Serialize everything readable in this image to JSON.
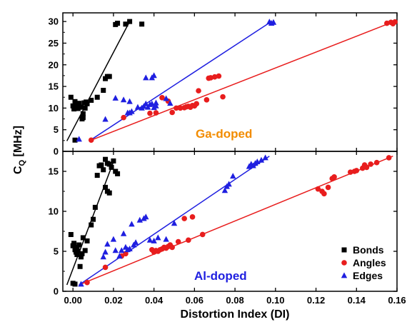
{
  "chart_data": [
    {
      "type": "scatter",
      "panel": "top",
      "annotation": "Ga-doped",
      "annotation_color": "#f28c00",
      "xlim": [
        -0.005,
        0.16
      ],
      "ylim": [
        0,
        32
      ],
      "ytick_values": [
        0,
        5,
        10,
        15,
        20,
        25,
        30
      ],
      "ytick_labels": [
        "0",
        "5",
        "10",
        "15",
        "20",
        "25",
        "30"
      ],
      "series": [
        {
          "name": "Bonds",
          "marker": "square",
          "color": "#000000",
          "points": [
            [
              -0.001,
              12.5
            ],
            [
              0.0,
              10.5
            ],
            [
              0.0005,
              9.8
            ],
            [
              0.001,
              11.5
            ],
            [
              0.001,
              2.6
            ],
            [
              0.0015,
              10.1
            ],
            [
              0.002,
              10.8
            ],
            [
              0.0025,
              9.9
            ],
            [
              0.003,
              11.1
            ],
            [
              0.004,
              10.2
            ],
            [
              0.0045,
              7.5
            ],
            [
              0.005,
              7.8
            ],
            [
              0.005,
              8.7
            ],
            [
              0.0055,
              11.2
            ],
            [
              0.006,
              10.0
            ],
            [
              0.0065,
              11.4
            ],
            [
              0.007,
              11.0
            ],
            [
              0.009,
              11.8
            ],
            [
              0.012,
              12.5
            ],
            [
              0.015,
              14.1
            ],
            [
              0.016,
              16.8
            ],
            [
              0.017,
              17.3
            ],
            [
              0.018,
              17.3
            ],
            [
              0.021,
              29.3
            ],
            [
              0.022,
              29.6
            ],
            [
              0.026,
              29.4
            ],
            [
              0.028,
              30.0
            ],
            [
              0.034,
              29.4
            ]
          ]
        },
        {
          "name": "Angles",
          "marker": "circle",
          "color": "#e81d1d",
          "points": [
            [
              0.009,
              2.6
            ],
            [
              0.025,
              7.8
            ],
            [
              0.038,
              8.8
            ],
            [
              0.041,
              8.9
            ],
            [
              0.044,
              12.4
            ],
            [
              0.047,
              11.6
            ],
            [
              0.049,
              9.0
            ],
            [
              0.051,
              10.0
            ],
            [
              0.053,
              10.0
            ],
            [
              0.055,
              10.1
            ],
            [
              0.056,
              10.3
            ],
            [
              0.057,
              10.4
            ],
            [
              0.058,
              10.2
            ],
            [
              0.059,
              10.6
            ],
            [
              0.06,
              10.5
            ],
            [
              0.061,
              11.0
            ],
            [
              0.062,
              14.0
            ],
            [
              0.066,
              11.9
            ],
            [
              0.067,
              16.9
            ],
            [
              0.068,
              17.0
            ],
            [
              0.07,
              17.2
            ],
            [
              0.072,
              17.4
            ],
            [
              0.074,
              12.6
            ],
            [
              0.155,
              29.6
            ],
            [
              0.157,
              29.8
            ],
            [
              0.158,
              29.5
            ],
            [
              0.159,
              29.9
            ]
          ]
        },
        {
          "name": "Edges",
          "marker": "triangle",
          "color": "#1f1fe0",
          "points": [
            [
              0.003,
              2.8
            ],
            [
              0.016,
              7.4
            ],
            [
              0.021,
              12.3
            ],
            [
              0.025,
              11.9
            ],
            [
              0.027,
              8.9
            ],
            [
              0.028,
              11.5
            ],
            [
              0.028,
              8.9
            ],
            [
              0.029,
              9.2
            ],
            [
              0.032,
              10.2
            ],
            [
              0.034,
              10.0
            ],
            [
              0.035,
              10.4
            ],
            [
              0.036,
              17.0
            ],
            [
              0.036,
              11.0
            ],
            [
              0.037,
              10.2
            ],
            [
              0.038,
              10.8
            ],
            [
              0.039,
              11.0
            ],
            [
              0.039,
              17.0
            ],
            [
              0.04,
              17.5
            ],
            [
              0.04,
              10.1
            ],
            [
              0.041,
              10.5
            ],
            [
              0.041,
              11.2
            ],
            [
              0.046,
              12.2
            ],
            [
              0.048,
              11.1
            ],
            [
              0.097,
              29.9
            ],
            [
              0.098,
              29.6
            ],
            [
              0.099,
              29.8
            ]
          ]
        }
      ],
      "fit_lines": [
        {
          "color": "#000000",
          "x": [
            -0.003,
            0.028
          ],
          "y": [
            2.4,
            30.0
          ]
        },
        {
          "color": "#1f1fe0",
          "x": [
            0.008,
            0.098
          ],
          "y": [
            2.4,
            30.0
          ]
        },
        {
          "color": "#e81d1d",
          "x": [
            0.008,
            0.158
          ],
          "y": [
            2.4,
            29.9
          ]
        }
      ]
    },
    {
      "type": "scatter",
      "panel": "bottom",
      "annotation": "Al-doped",
      "annotation_color": "#1f1fe0",
      "xlim": [
        -0.005,
        0.16
      ],
      "ylim": [
        0,
        17.5
      ],
      "ytick_values": [
        0,
        5,
        10,
        15
      ],
      "ytick_labels": [
        "0",
        "5",
        "10",
        "15"
      ],
      "series": [
        {
          "name": "Bonds",
          "marker": "square",
          "color": "#000000",
          "points": [
            [
              -0.001,
              7.1
            ],
            [
              0.0,
              5.7
            ],
            [
              0.0005,
              6.0
            ],
            [
              0.001,
              5.2
            ],
            [
              0.0015,
              4.9
            ],
            [
              0.002,
              5.5
            ],
            [
              0.002,
              4.6
            ],
            [
              0.0025,
              5.0
            ],
            [
              0.003,
              5.8
            ],
            [
              0.0035,
              3.1
            ],
            [
              0.004,
              4.3
            ],
            [
              0.0045,
              4.7
            ],
            [
              0.005,
              6.7
            ],
            [
              0.006,
              5.1
            ],
            [
              0.007,
              6.3
            ],
            [
              0.009,
              8.3
            ],
            [
              0.01,
              9.0
            ],
            [
              0.011,
              10.5
            ],
            [
              0.012,
              14.5
            ],
            [
              0.013,
              15.7
            ],
            [
              0.014,
              15.8
            ],
            [
              0.015,
              15.2
            ],
            [
              0.016,
              16.5
            ],
            [
              0.016,
              13.0
            ],
            [
              0.017,
              16.0
            ],
            [
              0.017,
              12.5
            ],
            [
              0.018,
              15.9
            ],
            [
              0.018,
              12.3
            ],
            [
              0.019,
              15.5
            ],
            [
              0.02,
              16.3
            ],
            [
              0.021,
              15.0
            ],
            [
              0.022,
              14.7
            ],
            [
              0.0,
              1.0
            ],
            [
              0.001,
              0.9
            ]
          ]
        },
        {
          "name": "Angles",
          "marker": "circle",
          "color": "#e81d1d",
          "points": [
            [
              0.007,
              1.1
            ],
            [
              0.016,
              3.0
            ],
            [
              0.024,
              4.4
            ],
            [
              0.026,
              4.7
            ],
            [
              0.039,
              5.2
            ],
            [
              0.04,
              4.9
            ],
            [
              0.041,
              5.1
            ],
            [
              0.042,
              5.0
            ],
            [
              0.043,
              5.2
            ],
            [
              0.044,
              5.3
            ],
            [
              0.045,
              5.5
            ],
            [
              0.046,
              5.4
            ],
            [
              0.047,
              5.6
            ],
            [
              0.048,
              5.8
            ],
            [
              0.049,
              5.5
            ],
            [
              0.052,
              6.2
            ],
            [
              0.055,
              9.1
            ],
            [
              0.057,
              6.4
            ],
            [
              0.059,
              9.3
            ],
            [
              0.064,
              7.1
            ],
            [
              0.121,
              12.8
            ],
            [
              0.123,
              12.5
            ],
            [
              0.124,
              12.2
            ],
            [
              0.126,
              13.0
            ],
            [
              0.128,
              14.1
            ],
            [
              0.129,
              14.3
            ],
            [
              0.137,
              14.9
            ],
            [
              0.139,
              15.0
            ],
            [
              0.14,
              15.1
            ],
            [
              0.143,
              15.4
            ],
            [
              0.144,
              15.8
            ],
            [
              0.145,
              15.5
            ],
            [
              0.147,
              15.9
            ],
            [
              0.15,
              16.1
            ],
            [
              0.156,
              16.7
            ]
          ]
        },
        {
          "name": "Edges",
          "marker": "triangle",
          "color": "#1f1fe0",
          "points": [
            [
              0.004,
              0.9
            ],
            [
              0.015,
              4.3
            ],
            [
              0.016,
              4.9
            ],
            [
              0.017,
              5.9
            ],
            [
              0.02,
              6.5
            ],
            [
              0.021,
              5.1
            ],
            [
              0.023,
              4.4
            ],
            [
              0.024,
              5.1
            ],
            [
              0.025,
              7.2
            ],
            [
              0.026,
              5.5
            ],
            [
              0.027,
              5.2
            ],
            [
              0.028,
              5.3
            ],
            [
              0.029,
              8.4
            ],
            [
              0.03,
              5.8
            ],
            [
              0.031,
              6.1
            ],
            [
              0.033,
              8.9
            ],
            [
              0.035,
              9.1
            ],
            [
              0.036,
              9.3
            ],
            [
              0.038,
              6.4
            ],
            [
              0.04,
              6.3
            ],
            [
              0.042,
              6.7
            ],
            [
              0.046,
              6.5
            ],
            [
              0.05,
              8.5
            ],
            [
              0.075,
              12.6
            ],
            [
              0.076,
              13.1
            ],
            [
              0.077,
              13.4
            ],
            [
              0.079,
              14.4
            ],
            [
              0.087,
              15.6
            ],
            [
              0.088,
              15.9
            ],
            [
              0.089,
              15.7
            ],
            [
              0.09,
              16.0
            ],
            [
              0.091,
              16.2
            ],
            [
              0.093,
              16.4
            ],
            [
              0.095,
              16.7
            ]
          ]
        }
      ],
      "fit_lines": [
        {
          "color": "#000000",
          "x": [
            -0.003,
            0.02
          ],
          "y": [
            0.8,
            16.2
          ]
        },
        {
          "color": "#1f1fe0",
          "x": [
            0.003,
            0.097
          ],
          "y": [
            0.8,
            16.9
          ]
        },
        {
          "color": "#e81d1d",
          "x": [
            0.003,
            0.158
          ],
          "y": [
            0.8,
            16.9
          ]
        }
      ]
    }
  ],
  "axes": {
    "xlabel": "Distortion Index (DI)",
    "ylabel_main": "C",
    "ylabel_sub": "Q",
    "ylabel_unit": " [MHz]",
    "xtick_values": [
      0.0,
      0.02,
      0.04,
      0.06,
      0.08,
      0.1,
      0.12,
      0.14,
      0.16
    ],
    "xtick_labels": [
      "0.00",
      "0.02",
      "0.04",
      "0.06",
      "0.08",
      "0.10",
      "0.12",
      "0.14",
      "0.16"
    ]
  },
  "legend": {
    "placement": "bottom-right of lower panel",
    "items": [
      {
        "label": "Bonds",
        "marker": "square",
        "color": "#000000"
      },
      {
        "label": "Angles",
        "marker": "circle",
        "color": "#e81d1d"
      },
      {
        "label": "Edges",
        "marker": "triangle",
        "color": "#1f1fe0"
      }
    ]
  }
}
